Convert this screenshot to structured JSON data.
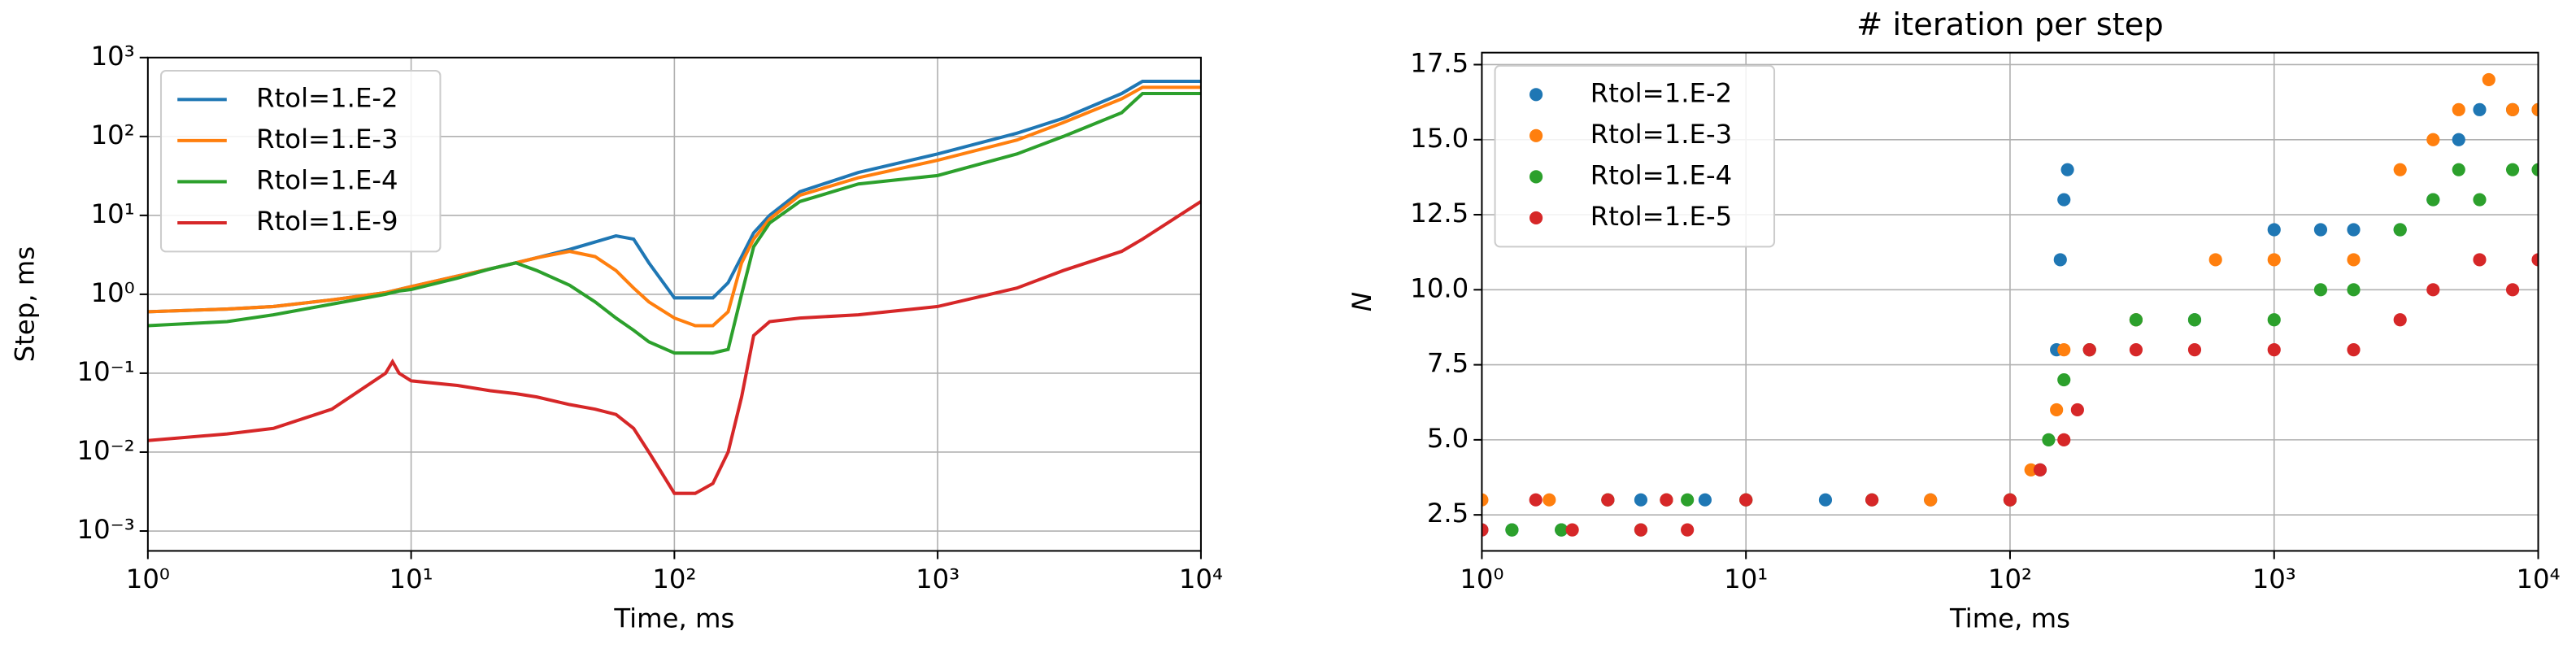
{
  "chart_data": [
    {
      "type": "line",
      "xlabel": "Time, ms",
      "ylabel": "Step, ms",
      "xscale": "log",
      "yscale": "log",
      "grid": true,
      "legend": "upper left",
      "xlim": [
        1,
        10000
      ],
      "ylim": [
        0.00056,
        1000
      ],
      "xticks": [
        {
          "value": 1,
          "label": "10⁰"
        },
        {
          "value": 10,
          "label": "10¹"
        },
        {
          "value": 100,
          "label": "10²"
        },
        {
          "value": 1000,
          "label": "10³"
        },
        {
          "value": 10000,
          "label": "10⁴"
        }
      ],
      "yticks": [
        {
          "value": 0.001,
          "label": "10⁻³"
        },
        {
          "value": 0.01,
          "label": "10⁻²"
        },
        {
          "value": 0.1,
          "label": "10⁻¹"
        },
        {
          "value": 1,
          "label": "10⁰"
        },
        {
          "value": 10,
          "label": "10¹"
        },
        {
          "value": 100,
          "label": "10²"
        },
        {
          "value": 1000,
          "label": "10³"
        }
      ],
      "x": [
        1,
        2,
        3,
        5,
        8,
        8.5,
        9,
        10,
        15,
        20,
        25,
        30,
        40,
        50,
        60,
        70,
        80,
        100,
        120,
        140,
        160,
        180,
        200,
        230,
        300,
        500,
        1000,
        2000,
        3000,
        5000,
        6000,
        10000
      ],
      "series": [
        {
          "name": "Rtol=1.E-2",
          "color": "#1f77b4",
          "values": [
            0.6,
            0.65,
            0.7,
            0.85,
            1.05,
            1.1,
            1.15,
            1.25,
            1.7,
            2.1,
            2.5,
            2.9,
            3.7,
            4.6,
            5.5,
            5,
            2.5,
            0.9,
            0.9,
            0.9,
            1.4,
            3,
            6,
            10,
            20,
            35,
            60,
            110,
            170,
            350,
            500,
            500
          ]
        },
        {
          "name": "Rtol=1.E-3",
          "color": "#ff7f0e",
          "values": [
            0.6,
            0.65,
            0.7,
            0.85,
            1.05,
            1.1,
            1.15,
            1.25,
            1.7,
            2.1,
            2.5,
            2.9,
            3.5,
            3,
            2,
            1.2,
            0.8,
            0.5,
            0.4,
            0.4,
            0.6,
            2.5,
            5,
            9,
            18,
            30,
            50,
            90,
            150,
            300,
            420,
            420
          ]
        },
        {
          "name": "Rtol=1.E-4",
          "color": "#2ca02c",
          "values": [
            0.4,
            0.45,
            0.55,
            0.75,
            1,
            1.05,
            1.1,
            1.15,
            1.6,
            2.1,
            2.5,
            2,
            1.3,
            0.8,
            0.5,
            0.35,
            0.25,
            0.18,
            0.18,
            0.18,
            0.2,
            1,
            4,
            8,
            15,
            25,
            32,
            60,
            100,
            200,
            350,
            350
          ]
        },
        {
          "name": "Rtol=1.E-9",
          "color": "#d62728",
          "values": [
            0.014,
            0.017,
            0.02,
            0.035,
            0.1,
            0.14,
            0.1,
            0.08,
            0.07,
            0.06,
            0.055,
            0.05,
            0.04,
            0.035,
            0.03,
            0.02,
            0.01,
            0.003,
            0.003,
            0.004,
            0.01,
            0.05,
            0.3,
            0.45,
            0.5,
            0.55,
            0.7,
            1.2,
            2,
            3.5,
            5,
            15
          ]
        }
      ]
    },
    {
      "type": "scatter",
      "title": "# iteration per step",
      "xlabel": "Time, ms",
      "ylabel": "N",
      "xscale": "log",
      "yscale": "linear",
      "grid": true,
      "legend": "upper left",
      "xlim": [
        1,
        10000
      ],
      "ylim": [
        1.3,
        17.9
      ],
      "xticks": [
        {
          "value": 1,
          "label": "10⁰"
        },
        {
          "value": 10,
          "label": "10¹"
        },
        {
          "value": 100,
          "label": "10²"
        },
        {
          "value": 1000,
          "label": "10³"
        },
        {
          "value": 10000,
          "label": "10⁴"
        }
      ],
      "yticks": [
        2.5,
        {
          "value": 5,
          "label": "5.0"
        },
        7.5,
        {
          "value": 10,
          "label": "10.0"
        },
        12.5,
        {
          "value": 15,
          "label": "15.0"
        },
        17.5
      ],
      "series": [
        {
          "name": "Rtol=1.E-2",
          "color": "#1f77b4",
          "x": [
            1,
            1.3,
            2,
            3,
            4,
            5,
            7,
            10,
            20,
            50,
            100,
            130,
            150,
            155,
            160,
            165,
            200,
            300,
            500,
            1000,
            1500,
            2000,
            3000,
            4000,
            5000,
            6000,
            8000,
            10000
          ],
          "values": [
            2,
            2,
            2,
            3,
            3,
            3,
            3,
            3,
            3,
            3,
            3,
            4,
            8,
            11,
            13,
            14,
            8,
            9,
            9,
            12,
            12,
            12,
            12,
            13,
            15,
            16,
            16,
            16
          ]
        },
        {
          "name": "Rtol=1.E-3",
          "color": "#ff7f0e",
          "x": [
            1,
            1.8,
            3,
            5,
            10,
            50,
            100,
            120,
            150,
            160,
            200,
            300,
            600,
            1000,
            2000,
            3000,
            4000,
            5000,
            6500,
            8000,
            10000
          ],
          "values": [
            3,
            3,
            3,
            3,
            3,
            3,
            3,
            4,
            6,
            8,
            8,
            9,
            11,
            11,
            11,
            14,
            15,
            16,
            17,
            16,
            16
          ]
        },
        {
          "name": "Rtol=1.E-4",
          "color": "#2ca02c",
          "x": [
            1.3,
            2,
            3,
            4,
            6,
            10,
            30,
            100,
            140,
            160,
            200,
            300,
            500,
            1000,
            1500,
            2000,
            3000,
            4000,
            5000,
            6000,
            8000,
            10000
          ],
          "values": [
            2,
            2,
            3,
            2,
            3,
            3,
            3,
            3,
            5,
            7,
            8,
            9,
            9,
            9,
            10,
            10,
            12,
            13,
            14,
            13,
            14,
            14
          ]
        },
        {
          "name": "Rtol=1.E-5",
          "color": "#d62728",
          "x": [
            1,
            1.6,
            2.2,
            3,
            4,
            5,
            6,
            10,
            30,
            100,
            130,
            160,
            180,
            200,
            300,
            500,
            1000,
            2000,
            3000,
            4000,
            6000,
            8000,
            10000
          ],
          "values": [
            2,
            3,
            2,
            3,
            2,
            3,
            2,
            3,
            3,
            3,
            4,
            5,
            6,
            8,
            8,
            8,
            8,
            8,
            9,
            10,
            11,
            10,
            11
          ]
        }
      ]
    }
  ]
}
